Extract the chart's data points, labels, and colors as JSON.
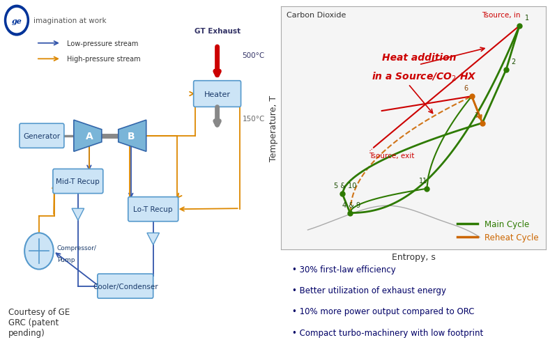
{
  "bg_color": "#ffffff",
  "imagination_text": "imagination at work",
  "legend_lp": "Low-pressure stream",
  "legend_hp": "High-pressure stream",
  "lp_color": "#3355aa",
  "hp_color": "#dd8800",
  "box_facecolor": "#cce4f6",
  "box_edgecolor": "#5599cc",
  "gt_exhaust_text": "GT Exhaust",
  "temp_500": "500°C",
  "temp_150": "150°C",
  "courtesy_text": "Courtesy of GE\nGRC (patent\npending)",
  "plot_title": "Carbon Dioxide",
  "plot_xlabel": "Entropy, s",
  "plot_ylabel": "Temperature, T",
  "main_cycle_color": "#2d7a00",
  "reheat_cycle_color": "#cc6600",
  "source_color": "#cc0000",
  "main_cycle_label": "Main Cycle",
  "reheat_cycle_label": "Reheat Cycle",
  "bullet_points": [
    "30% first-law efficiency",
    "Better utilization of exhaust energy",
    "10% more power output compared to ORC",
    "Compact turbo-machinery with low footprint"
  ],
  "bullet_color": "#000066"
}
